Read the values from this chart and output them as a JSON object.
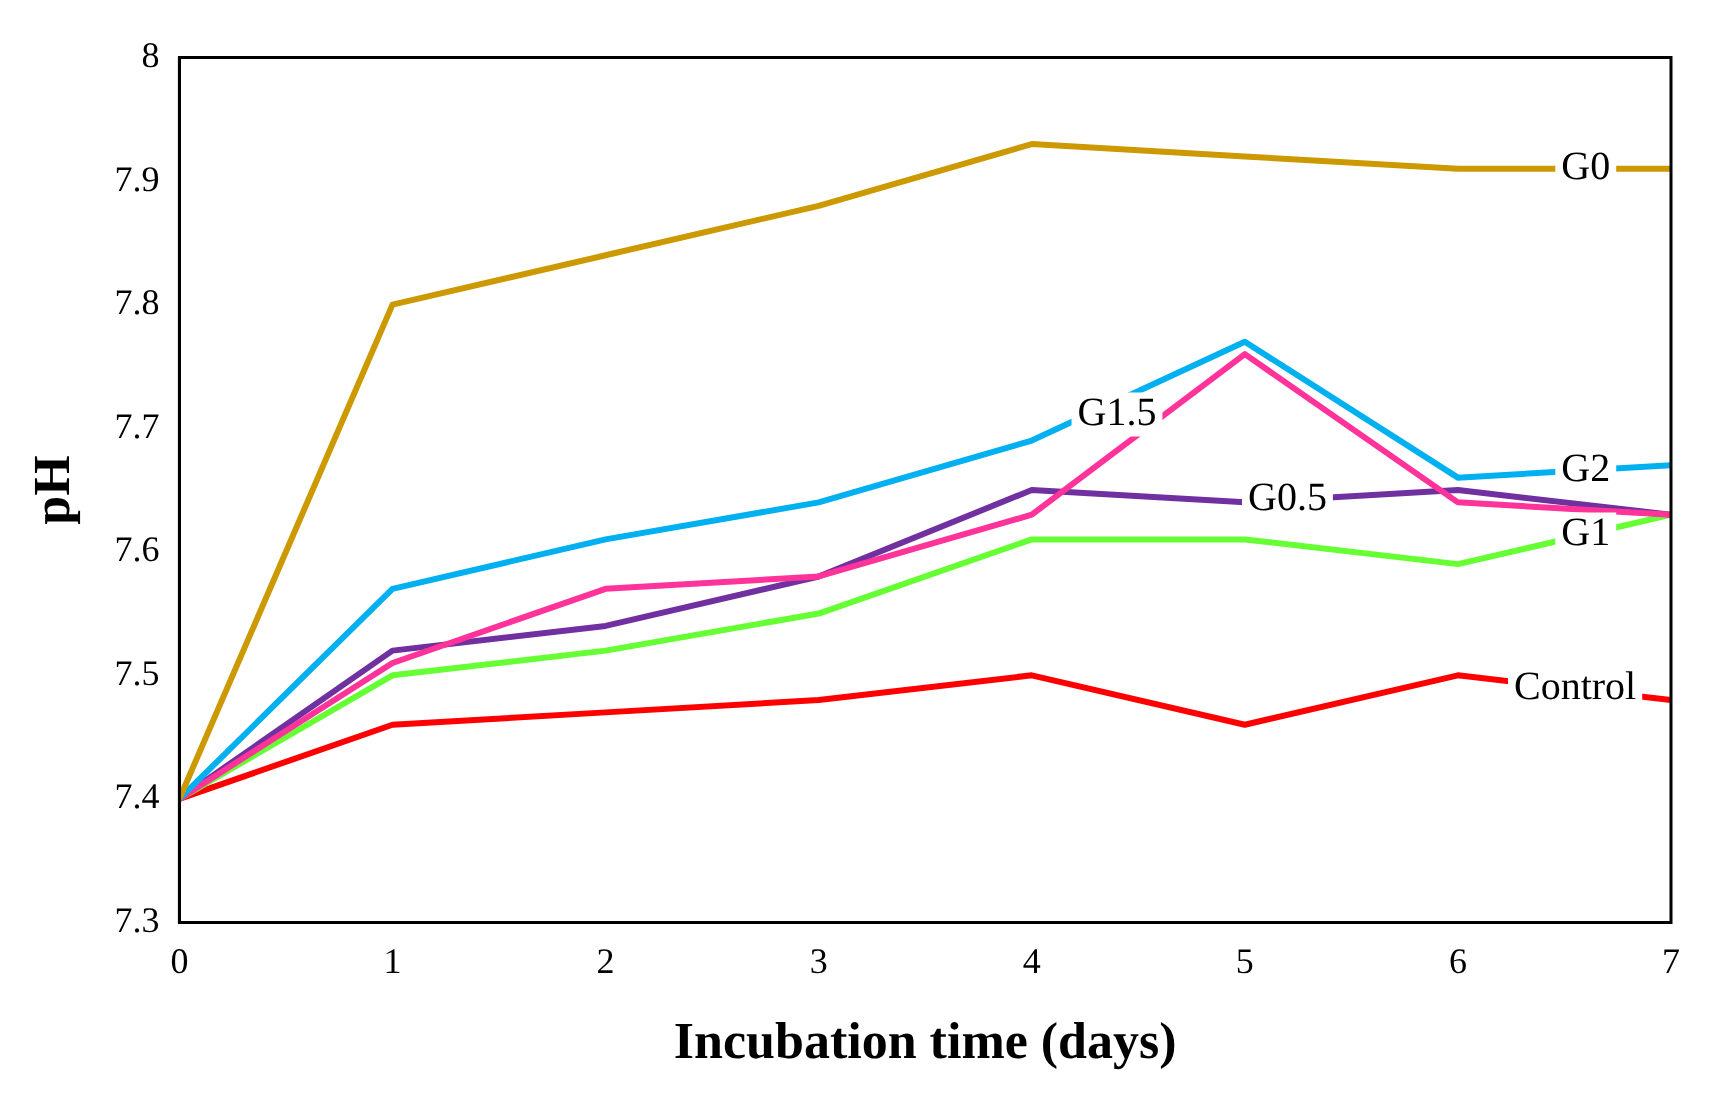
{
  "chart_data": {
    "type": "line",
    "xlabel": "Incubation time (days)",
    "ylabel": "pH",
    "x": [
      0,
      1,
      2,
      3,
      4,
      5,
      6,
      7
    ],
    "xlim": [
      0,
      7
    ],
    "xticks": [
      0,
      1,
      2,
      3,
      4,
      5,
      6,
      7
    ],
    "ylim": [
      7.3,
      8
    ],
    "yticks": [
      7.3,
      7.4,
      7.5,
      7.6,
      7.7,
      7.8,
      7.9,
      8
    ],
    "grid": false,
    "legend": false,
    "marker": "none",
    "line_style": "solid",
    "series": [
      {
        "name": "G0",
        "color": "#cc9900",
        "values": [
          7.4,
          7.8,
          7.84,
          7.88,
          7.93,
          7.92,
          7.91,
          7.91
        ]
      },
      {
        "name": "G2",
        "color": "#00b0f0",
        "values": [
          7.4,
          7.57,
          7.61,
          7.64,
          7.69,
          7.77,
          7.66,
          7.67
        ]
      },
      {
        "name": "G1.5",
        "color": "#ff3399",
        "values": [
          7.4,
          7.51,
          7.57,
          7.58,
          7.63,
          7.76,
          7.64,
          7.63
        ]
      },
      {
        "name": "G0.5",
        "color": "#7030a0",
        "values": [
          7.4,
          7.52,
          7.54,
          7.58,
          7.65,
          7.64,
          7.65,
          7.63
        ]
      },
      {
        "name": "G1",
        "color": "#66ff33",
        "values": [
          7.4,
          7.5,
          7.52,
          7.55,
          7.61,
          7.61,
          7.59,
          7.63
        ]
      },
      {
        "name": "Control",
        "color": "#ff0000",
        "values": [
          7.4,
          7.46,
          7.47,
          7.48,
          7.5,
          7.46,
          7.5,
          7.48
        ]
      }
    ]
  }
}
